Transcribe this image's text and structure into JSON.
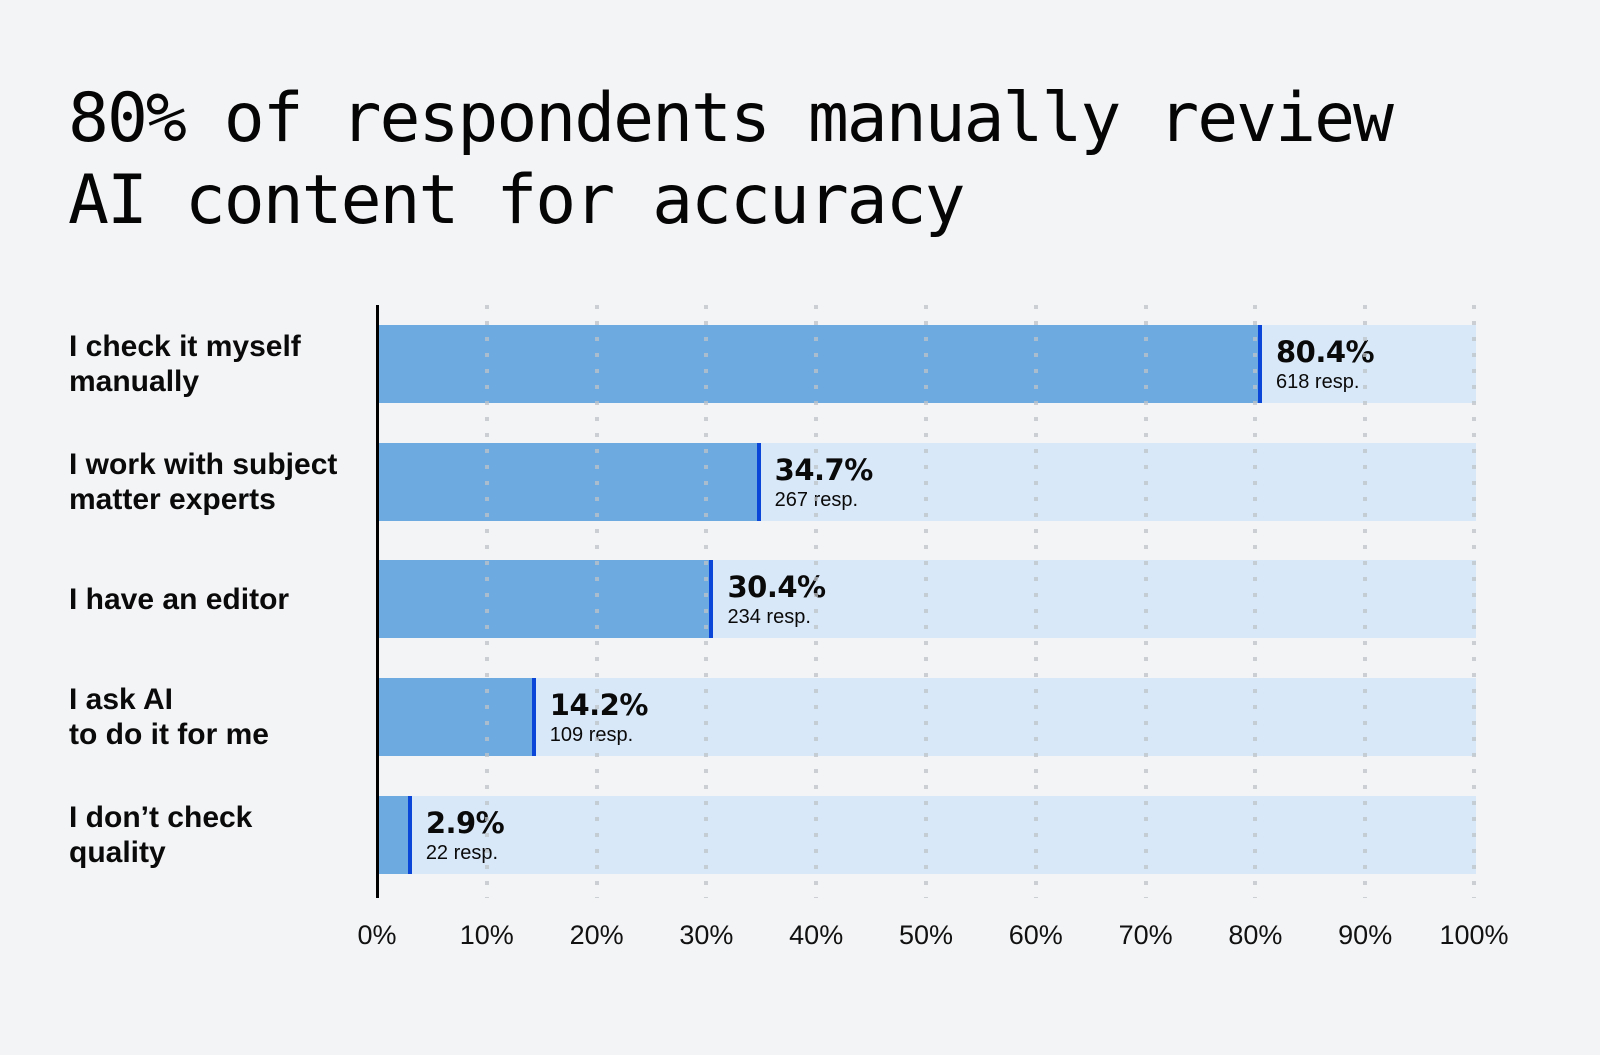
{
  "title": "80% of respondents manually review\nAI content for accuracy",
  "colors": {
    "background": "#f3f4f6",
    "bar_track": "#d9e8f8",
    "bar_fill": "#6caae0",
    "bar_edge": "#0a46d8",
    "text": "#0a0a0a"
  },
  "rows": [
    {
      "label": "I check it myself\nmanually",
      "pct": "80.4%",
      "resp": "618 resp."
    },
    {
      "label": "I work with subject\nmatter experts",
      "pct": "34.7%",
      "resp": "267 resp."
    },
    {
      "label": "I have an editor",
      "pct": "30.4%",
      "resp": "234 resp."
    },
    {
      "label": "I ask AI\nto do it for me",
      "pct": "14.2%",
      "resp": "109 resp."
    },
    {
      "label": "I don’t check\nquality",
      "pct": "2.9%",
      "resp": "22 resp."
    }
  ],
  "axis": {
    "ticks": [
      "0%",
      "10%",
      "20%",
      "30%",
      "40%",
      "50%",
      "60%",
      "70%",
      "80%",
      "90%",
      "100%"
    ]
  },
  "chart_data": {
    "type": "bar",
    "orientation": "horizontal",
    "title": "80% of respondents manually review AI content for accuracy",
    "categories": [
      "I check it myself manually",
      "I work with subject matter experts",
      "I have an editor",
      "I ask AI to do it for me",
      "I don’t check quality"
    ],
    "values": [
      80.4,
      34.7,
      30.4,
      14.2,
      2.9
    ],
    "responses": [
      618,
      267,
      234,
      109,
      22
    ],
    "xlabel": "",
    "ylabel": "",
    "xlim": [
      0,
      100
    ],
    "xticks": [
      "0%",
      "10%",
      "20%",
      "30%",
      "40%",
      "50%",
      "60%",
      "70%",
      "80%",
      "90%",
      "100%"
    ],
    "grid": "vertical dotted",
    "legend": null
  }
}
